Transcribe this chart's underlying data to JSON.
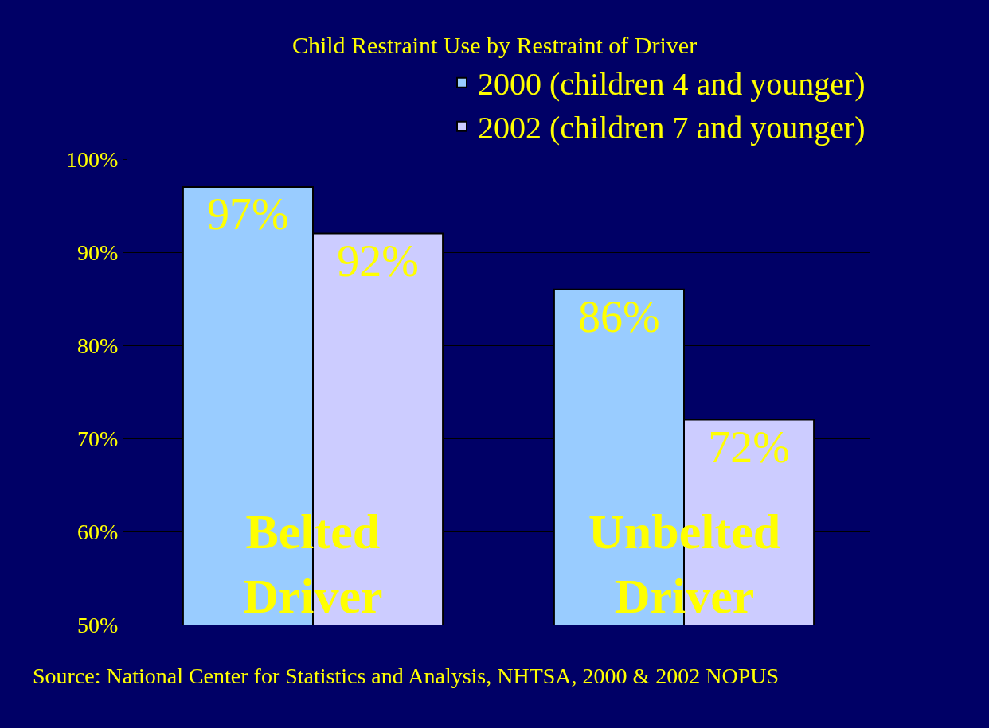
{
  "chart_data": {
    "type": "bar",
    "title": "Child Restraint Use by Restraint of Driver",
    "categories": [
      "Belted Driver",
      "Unbelted Driver"
    ],
    "series": [
      {
        "name": "2000 (children 4 and younger)",
        "color": "#99ccff",
        "values": [
          97,
          86
        ],
        "value_labels": [
          "97%",
          "86%"
        ]
      },
      {
        "name": "2002 (children 7 and younger)",
        "color": "#ccccff",
        "values": [
          92,
          72
        ],
        "value_labels": [
          "92%",
          "72%"
        ]
      }
    ],
    "ylim": [
      50,
      100
    ],
    "yticks": [
      {
        "value": 50,
        "label": "50%"
      },
      {
        "value": 60,
        "label": "60%"
      },
      {
        "value": 70,
        "label": "70%"
      },
      {
        "value": 80,
        "label": "80%"
      },
      {
        "value": 90,
        "label": "90%"
      },
      {
        "value": 100,
        "label": "100%"
      }
    ],
    "grid": "y",
    "legend": "top right",
    "annotations": [
      "Source: National Center for Statistics and Analysis, NHTSA, 2000 & 2002 NOPUS"
    ]
  }
}
